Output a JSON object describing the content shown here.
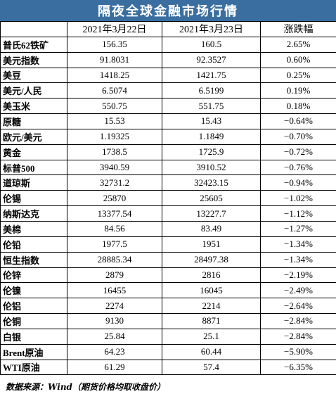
{
  "title": "隔夜全球金融市场行情",
  "headers": [
    "",
    "2021年3月22日",
    "2021年3月23日",
    "涨跌幅"
  ],
  "rows": [
    {
      "name": "普氏62铁矿",
      "d1": "156.35",
      "d2": "160.5",
      "chg": "2.65%"
    },
    {
      "name": "美元指数",
      "d1": "91.8031",
      "d2": "92.3527",
      "chg": "0.60%"
    },
    {
      "name": "美豆",
      "d1": "1418.25",
      "d2": "1421.75",
      "chg": "0.25%"
    },
    {
      "name": "美元/人民",
      "d1": "6.5074",
      "d2": "6.5199",
      "chg": "0.19%"
    },
    {
      "name": "美玉米",
      "d1": "550.75",
      "d2": "551.75",
      "chg": "0.18%"
    },
    {
      "name": "原糖",
      "d1": "15.53",
      "d2": "15.43",
      "chg": "−0.64%"
    },
    {
      "name": "欧元/美元",
      "d1": "1.19325",
      "d2": "1.1849",
      "chg": "−0.70%"
    },
    {
      "name": "黄金",
      "d1": "1738.5",
      "d2": "1725.9",
      "chg": "−0.72%"
    },
    {
      "name": "标普500",
      "d1": "3940.59",
      "d2": "3910.52",
      "chg": "−0.76%"
    },
    {
      "name": "道琼斯",
      "d1": "32731.2",
      "d2": "32423.15",
      "chg": "−0.94%"
    },
    {
      "name": "伦锡",
      "d1": "25870",
      "d2": "25605",
      "chg": "−1.02%"
    },
    {
      "name": "纳斯达克",
      "d1": "13377.54",
      "d2": "13227.7",
      "chg": "−1.12%"
    },
    {
      "name": "美棉",
      "d1": "84.56",
      "d2": "83.49",
      "chg": "−1.27%"
    },
    {
      "name": "伦铅",
      "d1": "1977.5",
      "d2": "1951",
      "chg": "−1.34%"
    },
    {
      "name": "恒生指数",
      "d1": "28885.34",
      "d2": "28497.38",
      "chg": "−1.34%"
    },
    {
      "name": "伦锌",
      "d1": "2879",
      "d2": "2816",
      "chg": "−2.19%"
    },
    {
      "name": "伦镍",
      "d1": "16455",
      "d2": "16045",
      "chg": "−2.49%"
    },
    {
      "name": "伦铝",
      "d1": "2274",
      "d2": "2214",
      "chg": "−2.64%"
    },
    {
      "name": "伦铜",
      "d1": "9130",
      "d2": "8871",
      "chg": "−2.84%"
    },
    {
      "name": "白银",
      "d1": "25.84",
      "d2": "25.1",
      "chg": "−2.84%"
    },
    {
      "name": "Brent原油",
      "d1": "64.23",
      "d2": "60.44",
      "chg": "−5.90%"
    },
    {
      "name": "WTI原油",
      "d1": "61.29",
      "d2": "57.4",
      "chg": "−6.35%"
    }
  ],
  "footer": "数据来源：Wind（期货价格均取收盘价）",
  "colors": {
    "title_bg": "#3a6ea0",
    "title_text": "#ffffff",
    "grid": "#000000"
  }
}
